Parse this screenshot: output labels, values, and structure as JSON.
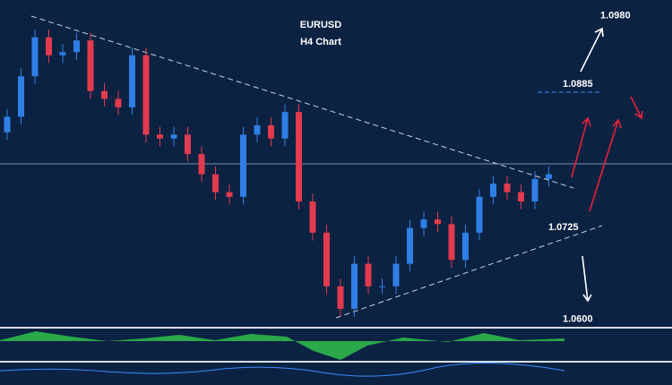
{
  "chart_data": {
    "type": "candlestick",
    "title": "EURUSD",
    "subtitle": "H4 Chart",
    "ylim": [
      1.058,
      1.1
    ],
    "up_color": "#2f7fe6",
    "down_color": "#e23a4e",
    "open": [
      1.083,
      1.085,
      1.0902,
      1.0952,
      1.0929,
      1.0933,
      1.0948,
      1.0883,
      1.0873,
      1.0862,
      1.0929,
      1.0827,
      1.0822,
      1.0827,
      1.0802,
      1.0776,
      1.0753,
      1.0747,
      1.0827,
      1.0839,
      1.0822,
      1.0856,
      1.0741,
      1.0701,
      1.0632,
      1.0603,
      1.0661,
      1.0632,
      1.0632,
      1.0661,
      1.0707,
      1.0718,
      1.0712,
      1.0666,
      1.0701,
      1.0747,
      1.0764,
      1.0753,
      1.0741,
      1.077
    ],
    "high": [
      1.086,
      1.0912,
      1.0962,
      1.0962,
      1.0943,
      1.0958,
      1.0958,
      1.0893,
      1.0883,
      1.0939,
      1.0939,
      1.0837,
      1.0837,
      1.0837,
      1.0812,
      1.0786,
      1.0763,
      1.0837,
      1.0849,
      1.0849,
      1.0866,
      1.0866,
      1.0751,
      1.0711,
      1.0642,
      1.0671,
      1.0671,
      1.0642,
      1.0671,
      1.0717,
      1.0728,
      1.0728,
      1.0722,
      1.0711,
      1.0757,
      1.0774,
      1.0774,
      1.0763,
      1.078,
      1.0786
    ],
    "low": [
      1.082,
      1.084,
      1.0892,
      1.0919,
      1.0919,
      1.0923,
      1.0873,
      1.0863,
      1.0852,
      1.0852,
      1.0817,
      1.0812,
      1.0812,
      1.0792,
      1.0766,
      1.0743,
      1.0737,
      1.0737,
      1.0817,
      1.0812,
      1.0812,
      1.0731,
      1.0691,
      1.0622,
      1.0593,
      1.0593,
      1.0622,
      1.0622,
      1.0622,
      1.0651,
      1.0697,
      1.0702,
      1.0656,
      1.0656,
      1.0691,
      1.0737,
      1.0743,
      1.0731,
      1.0731,
      1.076
    ],
    "close": [
      1.085,
      1.0902,
      1.0952,
      1.0929,
      1.0933,
      1.0948,
      1.0883,
      1.0873,
      1.0862,
      1.0929,
      1.0827,
      1.0822,
      1.0827,
      1.0802,
      1.0776,
      1.0753,
      1.0747,
      1.0827,
      1.0839,
      1.0822,
      1.0856,
      1.0741,
      1.0701,
      1.0632,
      1.0603,
      1.0661,
      1.0632,
      1.0632,
      1.0661,
      1.0707,
      1.0718,
      1.0712,
      1.0666,
      1.0701,
      1.0747,
      1.0764,
      1.0753,
      1.0741,
      1.077,
      1.0776
    ],
    "levels": [
      {
        "value": 1.098,
        "label": "1.0980",
        "color": "#ffffff"
      },
      {
        "value": 1.0885,
        "label": "1.0885",
        "color": "#3b8cff"
      },
      {
        "value": 1.0725,
        "label": "1.0725",
        "color": "#ffffff"
      },
      {
        "value": 1.06,
        "label": "1.0600",
        "color": "#ffffff"
      }
    ]
  }
}
